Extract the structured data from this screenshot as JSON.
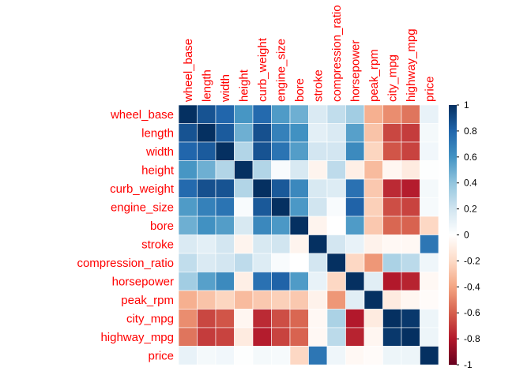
{
  "chart_data": {
    "type": "heatmap",
    "variables": [
      "wheel_base",
      "length",
      "width",
      "height",
      "curb_weight",
      "engine_size",
      "bore",
      "stroke",
      "compression_ratio",
      "horsepower",
      "peak_rpm",
      "city_mpg",
      "highway_mpg",
      "price"
    ],
    "matrix": [
      [
        1.0,
        0.87,
        0.8,
        0.59,
        0.78,
        0.57,
        0.49,
        0.16,
        0.25,
        0.35,
        -0.36,
        -0.47,
        -0.54,
        0.1
      ],
      [
        0.87,
        1.0,
        0.84,
        0.49,
        0.88,
        0.68,
        0.61,
        0.12,
        0.16,
        0.55,
        -0.29,
        -0.67,
        -0.7,
        0.05
      ],
      [
        0.8,
        0.84,
        1.0,
        0.3,
        0.87,
        0.74,
        0.56,
        0.19,
        0.19,
        0.64,
        -0.22,
        -0.63,
        -0.68,
        0.06
      ],
      [
        0.59,
        0.49,
        0.3,
        1.0,
        0.3,
        0.03,
        0.17,
        -0.06,
        0.26,
        -0.09,
        -0.32,
        -0.05,
        -0.11,
        0.01
      ],
      [
        0.78,
        0.88,
        0.87,
        0.3,
        1.0,
        0.85,
        0.65,
        0.17,
        0.15,
        0.75,
        -0.27,
        -0.75,
        -0.79,
        0.05
      ],
      [
        0.57,
        0.68,
        0.74,
        0.03,
        0.85,
        1.0,
        0.58,
        0.2,
        0.03,
        0.81,
        -0.24,
        -0.65,
        -0.68,
        0.04
      ],
      [
        0.49,
        0.61,
        0.56,
        0.17,
        0.65,
        0.58,
        1.0,
        -0.06,
        0.0,
        0.57,
        -0.27,
        -0.58,
        -0.59,
        -0.21
      ],
      [
        0.16,
        0.12,
        0.19,
        -0.06,
        0.17,
        0.2,
        -0.06,
        1.0,
        0.19,
        0.1,
        -0.07,
        -0.04,
        -0.04,
        0.73
      ],
      [
        0.25,
        0.16,
        0.19,
        0.26,
        0.15,
        0.03,
        0.0,
        0.19,
        1.0,
        -0.21,
        -0.44,
        0.32,
        0.27,
        0.07
      ],
      [
        0.35,
        0.55,
        0.64,
        -0.09,
        0.75,
        0.81,
        0.57,
        0.1,
        -0.21,
        1.0,
        0.13,
        -0.8,
        -0.77,
        -0.04
      ],
      [
        -0.36,
        -0.29,
        -0.22,
        -0.32,
        -0.27,
        -0.24,
        -0.27,
        -0.07,
        -0.44,
        0.13,
        1.0,
        -0.11,
        -0.05,
        -0.02
      ],
      [
        -0.47,
        -0.67,
        -0.63,
        -0.05,
        -0.75,
        -0.65,
        -0.58,
        -0.04,
        0.32,
        -0.8,
        -0.11,
        1.0,
        0.97,
        0.08
      ],
      [
        -0.54,
        -0.7,
        -0.68,
        -0.11,
        -0.79,
        -0.68,
        -0.59,
        -0.04,
        0.27,
        -0.77,
        -0.05,
        0.97,
        1.0,
        0.08
      ],
      [
        0.1,
        0.05,
        0.06,
        0.01,
        0.05,
        0.04,
        -0.21,
        0.73,
        0.07,
        -0.04,
        -0.02,
        0.08,
        0.08,
        1.0
      ]
    ],
    "colorbar": {
      "ticks": [
        "1",
        "0.8",
        "0.6",
        "0.4",
        "0.2",
        "0",
        "-0.2",
        "-0.4",
        "-0.6",
        "-0.8",
        "-1"
      ],
      "range": [
        -1,
        1
      ]
    },
    "label_color": "#ff0000",
    "palette": [
      "#67001F",
      "#B2182B",
      "#D6604D",
      "#F4A582",
      "#FDDBC7",
      "#FFFFFF",
      "#D1E5F0",
      "#92C5DE",
      "#4393C3",
      "#2166AC",
      "#053061"
    ],
    "title": "",
    "xlabel": "",
    "ylabel": ""
  }
}
